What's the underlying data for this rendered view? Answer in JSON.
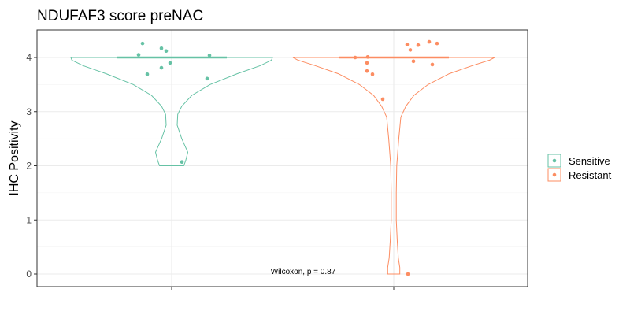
{
  "chart_data": {
    "type": "violin",
    "title": "NDUFAF3 score preNAC",
    "xlabel": "",
    "ylabel": "IHC Positivity",
    "ylim": [
      -0.22,
      4.5
    ],
    "yticks": [
      0,
      1,
      2,
      3,
      4
    ],
    "ytick_labels": [
      "0",
      "1",
      "2",
      "3",
      "4"
    ],
    "grid": true,
    "legend_position": "right",
    "annotation": "Wilcoxon, p = 0.87",
    "series": [
      {
        "name": "Sensitive",
        "color": "#66c2a5",
        "median": 4,
        "points": [
          4.26,
          4.12,
          4.17,
          4.04,
          4.05,
          3.9,
          3.81,
          3.69,
          3.61,
          2.07
        ]
      },
      {
        "name": "Resistant",
        "color": "#fc8d62",
        "median": 4,
        "points": [
          4.0,
          4.01,
          3.9,
          3.75,
          3.69,
          3.23,
          4.24,
          4.14,
          4.23,
          4.29,
          4.26,
          3.93,
          3.87,
          0.0
        ]
      }
    ]
  }
}
